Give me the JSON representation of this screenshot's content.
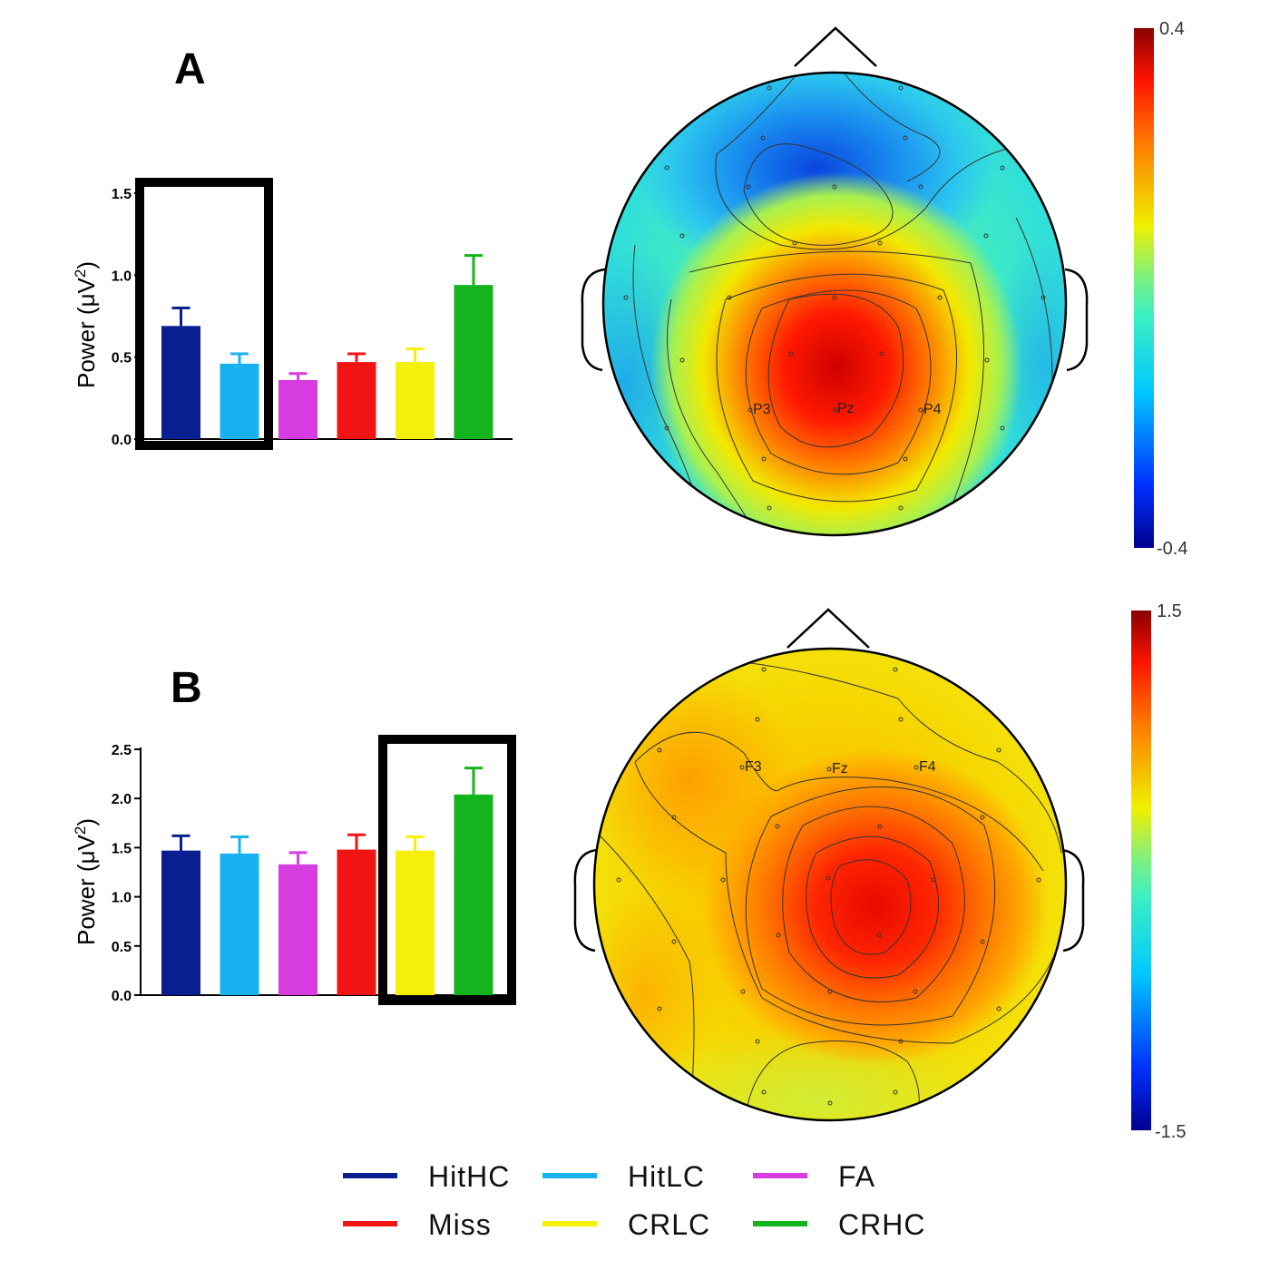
{
  "panels": [
    {
      "letter": "A",
      "ylabel": "Power (μV²)",
      "ylabel_parts": [
        "Power (",
        "μV",
        "2",
        ")"
      ],
      "highlight": "HitHC-HitLC",
      "electrodes": [
        "P3",
        "Pz",
        "P4"
      ],
      "colorbar": {
        "max_label": "0.4",
        "min_label": "-0.4"
      },
      "topomap": {
        "hot": "parietal-center",
        "cold": "frontal-center",
        "background": "cyan-green"
      }
    },
    {
      "letter": "B",
      "ylabel": "Power (μV²)",
      "ylabel_parts": [
        "Power (",
        "μV",
        "2",
        ")"
      ],
      "highlight": "CRLC-CRHC",
      "electrodes": [
        "F3",
        "Fz",
        "F4"
      ],
      "colorbar": {
        "max_label": "1.5",
        "min_label": "-1.5"
      },
      "topomap": {
        "hot": "right-central",
        "cold": "none",
        "background": "yellow-orange"
      }
    }
  ],
  "chart_data": [
    {
      "type": "bar",
      "panel": "A",
      "categories": [
        "HitHC",
        "HitLC",
        "FA",
        "Miss",
        "CRLC",
        "CRHC"
      ],
      "values": [
        0.69,
        0.46,
        0.36,
        0.47,
        0.47,
        0.94
      ],
      "errors": [
        0.11,
        0.06,
        0.04,
        0.05,
        0.08,
        0.18
      ],
      "ylim": [
        0,
        1.5
      ],
      "yticks": [
        "0.0",
        "0.5",
        "1.0",
        "1.5"
      ],
      "ylabel": "Power (μV²)",
      "xlabel": ""
    },
    {
      "type": "bar",
      "panel": "B",
      "categories": [
        "HitHC",
        "HitLC",
        "FA",
        "Miss",
        "CRLC",
        "CRHC"
      ],
      "values": [
        1.47,
        1.44,
        1.33,
        1.48,
        1.47,
        2.04
      ],
      "errors": [
        0.15,
        0.17,
        0.12,
        0.15,
        0.14,
        0.27
      ],
      "ylim": [
        0,
        2.5
      ],
      "yticks": [
        "0.0",
        "0.5",
        "1.0",
        "1.5",
        "2.0",
        "2.5"
      ],
      "ylabel": "Power (μV²)",
      "xlabel": ""
    }
  ],
  "legend": [
    {
      "label": "HitHC",
      "color": "#0a1f8f"
    },
    {
      "label": "HitLC",
      "color": "#19b2f0"
    },
    {
      "label": "FA",
      "color": "#d63ce0"
    },
    {
      "label": "Miss",
      "color": "#f01414"
    },
    {
      "label": "CRLC",
      "color": "#f5f00a"
    },
    {
      "label": "CRHC",
      "color": "#14b41e"
    }
  ],
  "colors": {
    "HitHC": "#0a1f8f",
    "HitLC": "#19b2f0",
    "FA": "#d63ce0",
    "Miss": "#f01414",
    "CRLC": "#f5f00a",
    "CRHC": "#14b41e",
    "axis": "#000000"
  }
}
